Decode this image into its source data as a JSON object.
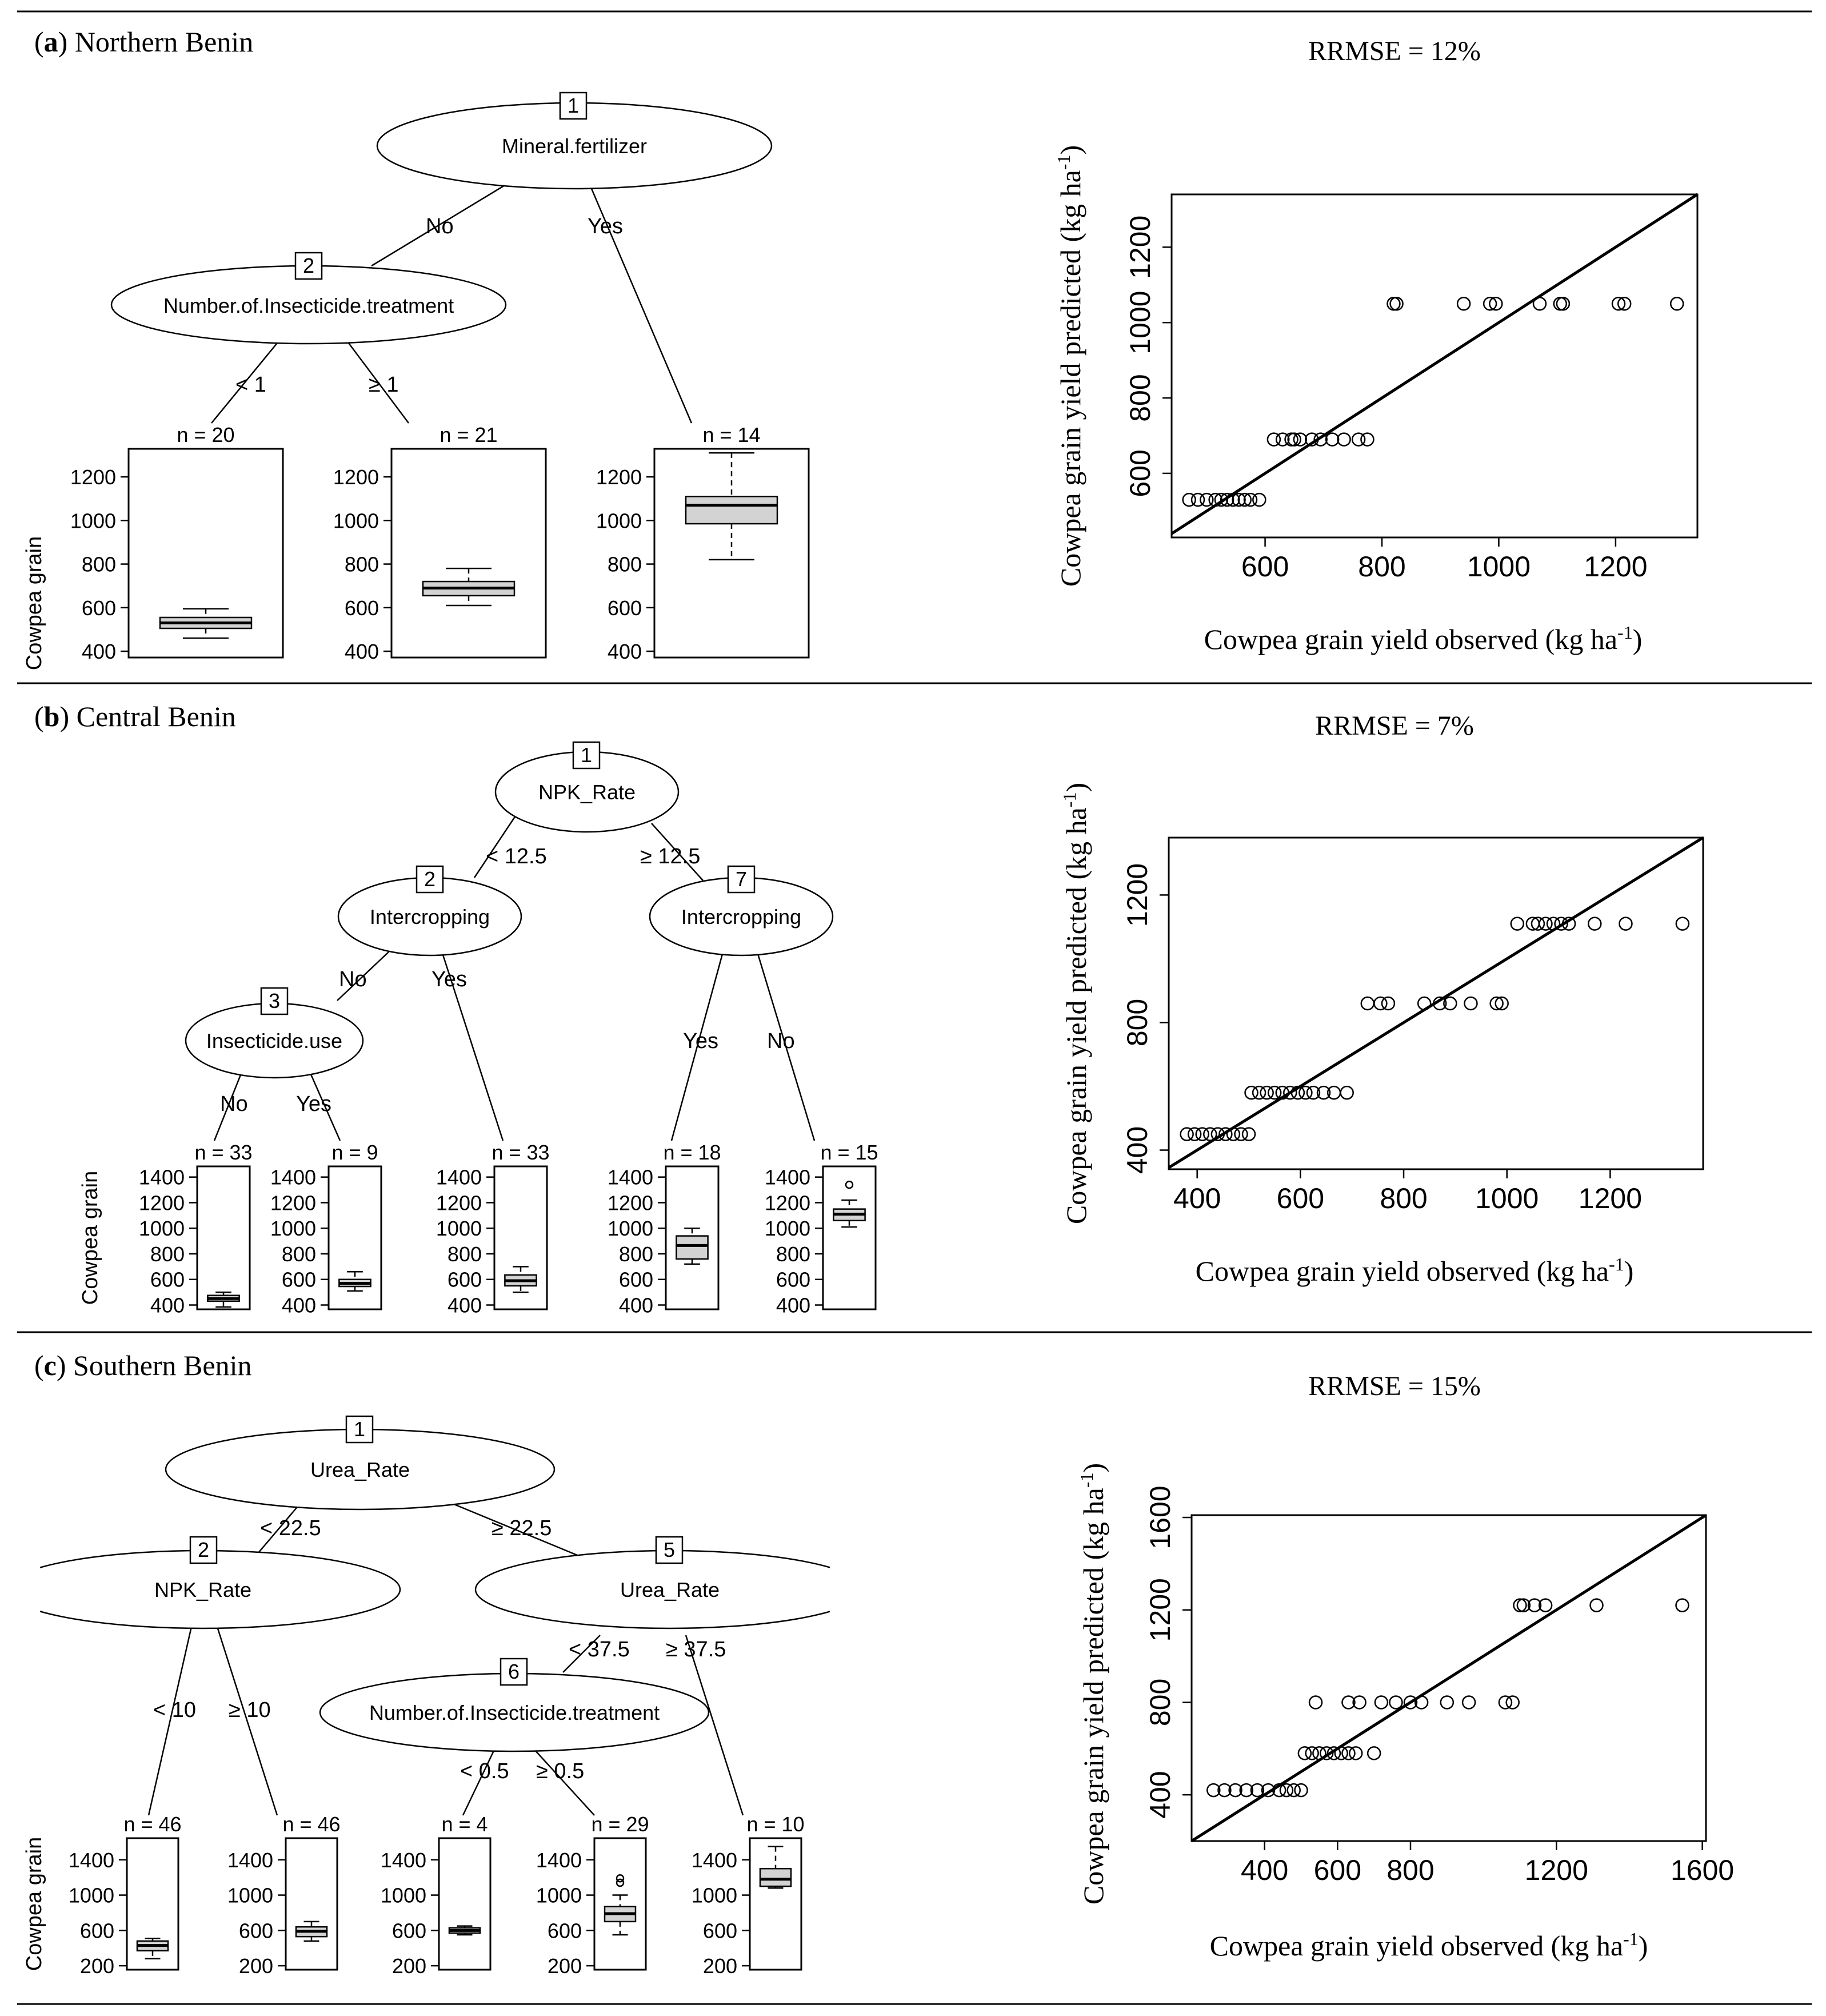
{
  "panels": [
    {
      "label": "a",
      "region": "Northern Benin",
      "tree": {
        "nodes": [
          {
            "id": "1",
            "var": "Mineral.fertilizer"
          },
          {
            "id": "2",
            "var": "Number.of.Insecticide.treatment"
          }
        ],
        "edge_labels": [
          "No",
          "Yes",
          "< 1",
          "≥ 1"
        ],
        "ylabel": "Cowpea grain",
        "leaves": [
          {
            "n": "n = 20",
            "q1": 505,
            "median": 530,
            "q3": 555,
            "lo": 460,
            "hi": 595,
            "outliers": []
          },
          {
            "n": "n = 21",
            "q1": 655,
            "median": 690,
            "q3": 720,
            "lo": 610,
            "hi": 780,
            "outliers": []
          },
          {
            "n": "n = 14",
            "q1": 985,
            "median": 1070,
            "q3": 1110,
            "lo": 820,
            "hi": 1310,
            "outliers": []
          }
        ],
        "ylim": [
          400,
          1300
        ],
        "ticks": [
          "400",
          "600",
          "800",
          "1000",
          "1200"
        ]
      },
      "scatter": {
        "rrmse": "RRMSE = 12%",
        "xlabel": "Cowpea grain yield observed (kg ha-1)",
        "ylabel": "Cowpea grain yield predicted (kg ha-1)",
        "xlim": [
          440,
          1340
        ],
        "ylim": [
          430,
          1340
        ],
        "xticks": [
          "600",
          "800",
          "1000",
          "1200"
        ],
        "yticks": [
          "600",
          "800",
          "1000",
          "1200"
        ]
      }
    },
    {
      "label": "b",
      "region": "Central Benin",
      "tree": {
        "nodes": [
          {
            "id": "1",
            "var": "NPK_Rate"
          },
          {
            "id": "2",
            "var": "Intercropping"
          },
          {
            "id": "7",
            "var": "Intercropping"
          },
          {
            "id": "3",
            "var": "Insecticide.use"
          }
        ],
        "edge_labels": [
          "< 12.5",
          "≥ 12.5",
          "No",
          "Yes",
          "Yes",
          "No",
          "No",
          "Yes"
        ],
        "ylabel": "Cowpea grain",
        "leaves": [
          {
            "n": "n = 33",
            "q1": 430,
            "median": 450,
            "q3": 475,
            "lo": 385,
            "hi": 500,
            "outliers": []
          },
          {
            "n": "n = 9",
            "q1": 545,
            "median": 570,
            "q3": 600,
            "lo": 510,
            "hi": 660,
            "outliers": []
          },
          {
            "n": "n = 33",
            "q1": 550,
            "median": 590,
            "q3": 635,
            "lo": 500,
            "hi": 700,
            "outliers": []
          },
          {
            "n": "n = 18",
            "q1": 760,
            "median": 865,
            "q3": 940,
            "lo": 720,
            "hi": 1000,
            "outliers": []
          },
          {
            "n": "n = 15",
            "q1": 1060,
            "median": 1110,
            "q3": 1150,
            "lo": 1010,
            "hi": 1220,
            "outliers": [
              1340
            ]
          }
        ],
        "ylim": [
          400,
          1450
        ],
        "ticks": [
          "400",
          "600",
          "800",
          "1000",
          "1200",
          "1400"
        ]
      },
      "scatter": {
        "rrmse": "RRMSE = 7%",
        "xlabel": "Cowpea grain yield observed (kg ha-1)",
        "ylabel": "Cowpea grain yield predicted (kg ha-1)",
        "xlim": [
          345,
          1380
        ],
        "ylim": [
          340,
          1380
        ],
        "xticks": [
          "400",
          "600",
          "800",
          "1000",
          "1200"
        ],
        "yticks": [
          "400",
          "800",
          "1200"
        ]
      }
    },
    {
      "label": "c",
      "region": "Southern Benin",
      "tree": {
        "nodes": [
          {
            "id": "1",
            "var": "Urea_Rate"
          },
          {
            "id": "2",
            "var": "NPK_Rate"
          },
          {
            "id": "5",
            "var": "Urea_Rate"
          },
          {
            "id": "6",
            "var": "Number.of.Insecticide.treatment"
          }
        ],
        "edge_labels": [
          "< 22.5",
          "≥ 22.5",
          "< 10",
          "≥ 10",
          "< 37.5",
          "≥ 37.5",
          "< 0.5",
          "≥ 0.5"
        ],
        "ylabel": "Cowpea grain",
        "leaves": [
          {
            "n": "n = 46",
            "q1": 370,
            "median": 430,
            "q3": 480,
            "lo": 280,
            "hi": 510,
            "outliers": []
          },
          {
            "n": "n = 46",
            "q1": 530,
            "median": 590,
            "q3": 640,
            "lo": 480,
            "hi": 700,
            "outliers": []
          },
          {
            "n": "n = 4",
            "q1": 570,
            "median": 600,
            "q3": 630,
            "lo": 550,
            "hi": 650,
            "outliers": []
          },
          {
            "n": "n = 29",
            "q1": 700,
            "median": 790,
            "q3": 870,
            "lo": 550,
            "hi": 1000,
            "outliers": [
              1140,
              1190
            ]
          },
          {
            "n": "n = 10",
            "q1": 1100,
            "median": 1180,
            "q3": 1300,
            "lo": 1080,
            "hi": 1550,
            "outliers": []
          }
        ],
        "ylim": [
          200,
          1600
        ],
        "ticks": [
          "200",
          "600",
          "1000",
          "1400"
        ]
      },
      "scatter": {
        "rrmse": "RRMSE = 15%",
        "xlabel": "Cowpea grain yield observed (kg ha-1)",
        "ylabel": "Cowpea grain yield predicted (kg ha-1)",
        "xlim": [
          200,
          1610
        ],
        "ylim": [
          200,
          1610
        ],
        "xticks": [
          "400",
          "600",
          "800",
          "1200",
          "1600"
        ],
        "yticks": [
          "400",
          "800",
          "1200",
          "1600"
        ]
      }
    }
  ],
  "chart_data": [
    {
      "type": "scatter",
      "title": "RRMSE = 12%",
      "xlabel": "Cowpea grain yield observed (kg ha-1)",
      "ylabel": "Cowpea grain yield predicted (kg ha-1)",
      "xlim": [
        440,
        1340
      ],
      "ylim": [
        430,
        1340
      ],
      "series": [
        {
          "name": "observations",
          "x": [
            470,
            485,
            500,
            515,
            525,
            535,
            545,
            555,
            565,
            575,
            590,
            615,
            630,
            645,
            650,
            660,
            680,
            695,
            715,
            735,
            760,
            775,
            820,
            825,
            940,
            985,
            995,
            1070,
            1105,
            1110,
            1205,
            1215,
            1305
          ],
          "y": [
            530,
            530,
            530,
            530,
            530,
            530,
            530,
            530,
            530,
            530,
            530,
            690,
            690,
            690,
            690,
            690,
            690,
            690,
            690,
            690,
            690,
            690,
            1050,
            1050,
            1050,
            1050,
            1050,
            1050,
            1050,
            1050,
            1050,
            1050,
            1050
          ]
        },
        {
          "name": "1:1 line",
          "x": [
            440,
            1340
          ],
          "y": [
            440,
            1340
          ]
        }
      ]
    },
    {
      "type": "scatter",
      "title": "RRMSE = 7%",
      "xlabel": "Cowpea grain yield observed (kg ha-1)",
      "ylabel": "Cowpea grain yield predicted (kg ha-1)",
      "xlim": [
        345,
        1380
      ],
      "ylim": [
        340,
        1380
      ],
      "series": [
        {
          "name": "observations",
          "x": [
            380,
            395,
            410,
            425,
            440,
            455,
            470,
            485,
            500,
            505,
            520,
            535,
            550,
            565,
            580,
            595,
            610,
            625,
            645,
            665,
            690,
            730,
            755,
            770,
            840,
            870,
            890,
            930,
            980,
            990,
            1020,
            1050,
            1060,
            1075,
            1090,
            1105,
            1120,
            1170,
            1230,
            1340
          ],
          "y": [
            450,
            450,
            450,
            450,
            450,
            450,
            450,
            450,
            450,
            580,
            580,
            580,
            580,
            580,
            580,
            580,
            580,
            580,
            580,
            580,
            580,
            860,
            860,
            860,
            860,
            860,
            860,
            860,
            860,
            860,
            1110,
            1110,
            1110,
            1110,
            1110,
            1110,
            1110,
            1110,
            1110,
            1110
          ]
        },
        {
          "name": "1:1 line",
          "x": [
            345,
            1380
          ],
          "y": [
            345,
            1380
          ]
        }
      ]
    },
    {
      "type": "scatter",
      "title": "RRMSE = 15%",
      "xlabel": "Cowpea grain yield observed (kg ha-1)",
      "ylabel": "Cowpea grain yield predicted (kg ha-1)",
      "xlim": [
        200,
        1610
      ],
      "ylim": [
        200,
        1610
      ],
      "series": [
        {
          "name": "observations",
          "x": [
            260,
            290,
            320,
            350,
            380,
            410,
            440,
            460,
            480,
            500,
            510,
            530,
            550,
            570,
            590,
            610,
            630,
            650,
            700,
            540,
            630,
            660,
            720,
            760,
            800,
            830,
            900,
            960,
            1060,
            1080,
            1100,
            1110,
            1140,
            1170,
            1310,
            1545
          ],
          "y": [
            420,
            420,
            420,
            420,
            420,
            420,
            420,
            420,
            420,
            420,
            580,
            580,
            580,
            580,
            580,
            580,
            580,
            580,
            580,
            800,
            800,
            800,
            800,
            800,
            800,
            800,
            800,
            800,
            800,
            800,
            1220,
            1220,
            1220,
            1220,
            1220,
            1220
          ]
        },
        {
          "name": "1:1 line",
          "x": [
            200,
            1610
          ],
          "y": [
            200,
            1610
          ]
        }
      ]
    }
  ]
}
